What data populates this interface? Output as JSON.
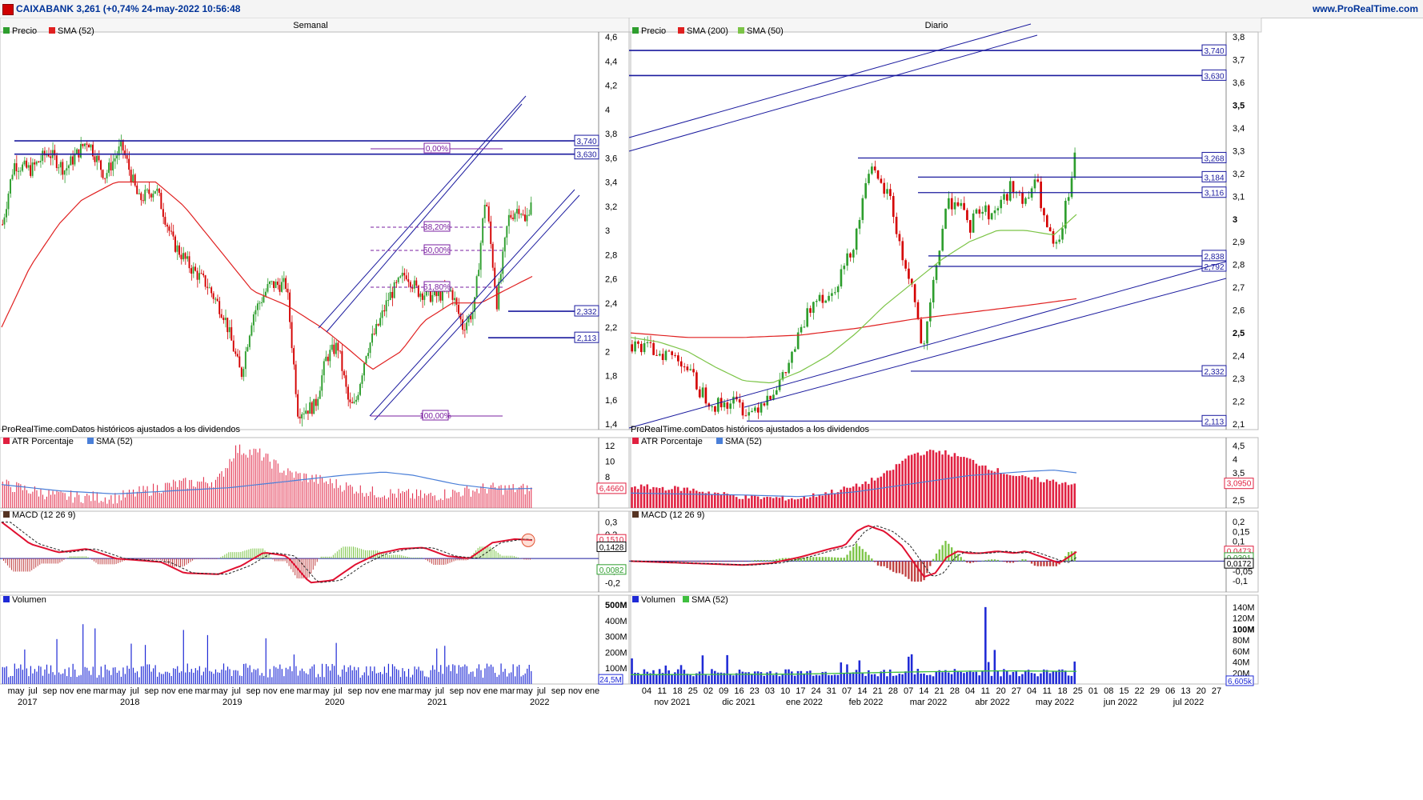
{
  "header": {
    "title": "CAIXABANK 3,261 (+0,74% 24-may-2022 10:56:48",
    "site": "www.ProRealTime.com"
  },
  "colors": {
    "price_up": "#2e9e2e",
    "price_down": "#d40000",
    "level": "#1a1a9e",
    "sma_red": "#e02020",
    "sma_green": "#7cc447",
    "sma_blue": "#4a7fd8",
    "fib": "#7a1fa0",
    "volume": "#1f2ad6",
    "macd_line": "#e01030"
  },
  "weekly": {
    "title": "Semanal",
    "price_legend": [
      "Precio",
      "SMA (52)"
    ],
    "footer": "ProRealTime.comDatos históricos ajustados a los dividendos",
    "yticks": [
      "4,6",
      "4,4",
      "4,2",
      "4",
      "3,8",
      "3,6",
      "3,4",
      "3,2",
      "3",
      "2,8",
      "2,6",
      "2,4",
      "2,2",
      "2",
      "1,8",
      "1,6",
      "1,4"
    ],
    "levels": [
      {
        "value": 3.74,
        "label": "3,740"
      },
      {
        "value": 3.63,
        "label": "3,630"
      },
      {
        "value": 2.332,
        "label": "2,332"
      },
      {
        "value": 2.113,
        "label": "2,113"
      }
    ],
    "fib_labels": [
      "0,00%",
      "38,20%",
      "50,00%",
      "61,80%",
      "100,00%"
    ],
    "atr": {
      "legend": [
        "ATR Porcentaje",
        "SMA (52)"
      ],
      "yticks": [
        "12",
        "10",
        "8"
      ],
      "value": "6,4660"
    },
    "macd": {
      "legend": [
        "MACD (12 26 9)"
      ],
      "yticks": [
        "0,3",
        "0,2",
        "-0,1",
        "-0,2"
      ],
      "values": [
        "0,1510",
        "0,1428",
        "0,0082"
      ]
    },
    "volume": {
      "legend": [
        "Volumen"
      ],
      "yticks": [
        "500M",
        "400M",
        "300M",
        "200M",
        "100M"
      ],
      "value": "24,5M"
    },
    "xmonths": [
      "may",
      "jul",
      "sep",
      "nov",
      "ene",
      "mar",
      "may",
      "jul",
      "sep",
      "nov",
      "ene",
      "mar",
      "may",
      "jul",
      "sep",
      "nov",
      "ene",
      "mar",
      "may",
      "jul",
      "sep",
      "nov",
      "ene",
      "mar",
      "may",
      "jul",
      "sep",
      "nov",
      "ene",
      "mar",
      "may",
      "jul",
      "sep",
      "nov",
      "ene"
    ],
    "xyears": [
      "2017",
      "2018",
      "2019",
      "2020",
      "2021",
      "2022"
    ]
  },
  "daily": {
    "title": "Diario",
    "price_legend": [
      "Precio",
      "SMA (200)",
      "SMA (50)"
    ],
    "footer": "ProRealTime.comDatos históricos ajustados a los dividendos",
    "yticks": [
      "3,8",
      "3,7",
      "3,6",
      "3,5",
      "3,4",
      "3,3",
      "3,2",
      "3,1",
      "3",
      "2,9",
      "2,8",
      "2,7",
      "2,6",
      "2,5",
      "2,4",
      "2,3",
      "2,2",
      "2,1"
    ],
    "levels": [
      {
        "value": 3.74,
        "label": "3,740"
      },
      {
        "value": 3.63,
        "label": "3,630"
      },
      {
        "value": 3.268,
        "label": "3,268"
      },
      {
        "value": 3.184,
        "label": "3,184"
      },
      {
        "value": 3.116,
        "label": "3,116"
      },
      {
        "value": 2.838,
        "label": "2,838"
      },
      {
        "value": 2.792,
        "label": "2,792"
      },
      {
        "value": 2.332,
        "label": "2,332"
      },
      {
        "value": 2.113,
        "label": "2,113"
      }
    ],
    "atr": {
      "legend": [
        "ATR Porcentaje",
        "SMA (52)"
      ],
      "yticks": [
        "4,5",
        "4",
        "3,5",
        "2,5"
      ],
      "value": "3,0950"
    },
    "macd": {
      "legend": [
        "MACD (12 26 9)"
      ],
      "yticks": [
        "0,2",
        "0,15",
        "0,1",
        "0,05",
        "-0,05",
        "-0,1"
      ],
      "values": [
        "0,0473",
        "0,0301",
        "0,0172"
      ]
    },
    "volume": {
      "legend": [
        "Volumen",
        "SMA (52)"
      ],
      "yticks": [
        "140M",
        "120M",
        "100M",
        "80M",
        "60M",
        "40M",
        "20M"
      ],
      "value": "6,605k"
    },
    "xdays": [
      "04",
      "11",
      "18",
      "25",
      "02",
      "09",
      "16",
      "23",
      "03",
      "10",
      "17",
      "24",
      "31",
      "07",
      "14",
      "21",
      "28",
      "07",
      "14",
      "21",
      "28",
      "04",
      "11",
      "20",
      "27",
      "04",
      "11",
      "18",
      "25",
      "01",
      "08",
      "15",
      "22",
      "29",
      "06",
      "13",
      "20",
      "27"
    ],
    "xmonths": [
      "nov 2021",
      "dic 2021",
      "ene 2022",
      "feb 2022",
      "mar 2022",
      "abr 2022",
      "may 2022",
      "jun 2022",
      "jul 2022"
    ]
  },
  "chart_data": [
    {
      "type": "line",
      "title": "Semanal",
      "series": [
        {
          "name": "Precio",
          "x": [
            "2017-05",
            "2017-09",
            "2018-03",
            "2018-05",
            "2018-09",
            "2019-01",
            "2019-05",
            "2019-09",
            "2020-01",
            "2020-03",
            "2020-05",
            "2020-07",
            "2020-10",
            "2021-01",
            "2021-04",
            "2021-06",
            "2021-09",
            "2021-11",
            "2022-01",
            "2022-03",
            "2022-05"
          ],
          "values": [
            3.3,
            3.6,
            3.75,
            3.6,
            3.55,
            3.2,
            2.85,
            2.3,
            2.55,
            1.9,
            1.5,
            1.95,
            1.5,
            2.1,
            2.55,
            2.5,
            2.45,
            2.15,
            3.3,
            2.4,
            3.261
          ]
        },
        {
          "name": "SMA (52)",
          "x": [
            "2017-05",
            "2017-09",
            "2018-03",
            "2018-09",
            "2019-03",
            "2019-09",
            "2020-03",
            "2020-09",
            "2021-01",
            "2021-06",
            "2021-11",
            "2022-05"
          ],
          "values": [
            2.2,
            3.1,
            3.4,
            3.35,
            3.0,
            2.45,
            2.35,
            2.0,
            1.9,
            2.25,
            2.4,
            2.62
          ]
        }
      ],
      "ylim": [
        1.4,
        4.6
      ]
    },
    {
      "type": "line",
      "title": "Diario",
      "series": [
        {
          "name": "Precio",
          "x": [
            "2021-11-04",
            "2021-11-18",
            "2021-12-01",
            "2021-12-20",
            "2022-01-05",
            "2022-01-20",
            "2022-02-03",
            "2022-02-10",
            "2022-02-24",
            "2022-03-07",
            "2022-03-14",
            "2022-03-21",
            "2022-04-07",
            "2022-04-20",
            "2022-05-02",
            "2022-05-12",
            "2022-05-24"
          ],
          "values": [
            2.48,
            2.4,
            2.18,
            2.14,
            2.35,
            2.8,
            3.12,
            3.25,
            2.9,
            2.33,
            2.85,
            3.1,
            3.05,
            3.15,
            2.95,
            2.82,
            3.261
          ]
        },
        {
          "name": "SMA (200)",
          "x": [
            "2021-11-04",
            "2021-12-15",
            "2022-01-20",
            "2022-02-24",
            "2022-03-25",
            "2022-05-24"
          ],
          "values": [
            2.5,
            2.48,
            2.49,
            2.56,
            2.58,
            2.65
          ]
        },
        {
          "name": "SMA (50)",
          "x": [
            "2021-11-04",
            "2021-12-20",
            "2022-01-20",
            "2022-02-15",
            "2022-03-10",
            "2022-04-07",
            "2022-05-10",
            "2022-05-24"
          ],
          "values": [
            2.48,
            2.28,
            2.38,
            2.62,
            2.8,
            2.95,
            2.95,
            3.02
          ]
        }
      ],
      "ylim": [
        2.1,
        3.8
      ]
    }
  ]
}
